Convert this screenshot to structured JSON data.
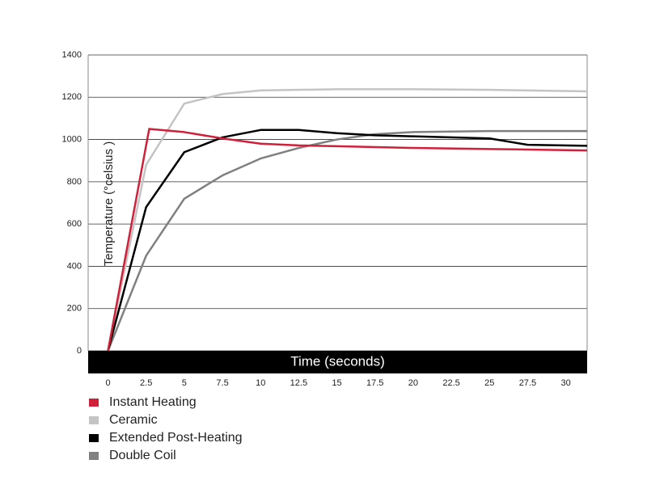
{
  "chart_data": {
    "type": "line",
    "x_label": "Time (seconds)",
    "y_label": "Temperature (°celsius )",
    "xlim": [
      -1.3,
      31.4
    ],
    "xticks": [
      0,
      2.5,
      5,
      7.5,
      10,
      12.5,
      15,
      17.5,
      20,
      22.5,
      25,
      27.5,
      30
    ],
    "ylim": [
      0,
      1400
    ],
    "yticks": [
      0,
      200,
      400,
      600,
      800,
      1000,
      1200,
      1400
    ],
    "grid": true,
    "legend": "bottom-left",
    "series": [
      {
        "name": "Instant Heating",
        "color": "#d0203a",
        "x": [
          0,
          2.7,
          5,
          7.5,
          10,
          12.5,
          15,
          20,
          25,
          31.4
        ],
        "values": [
          0,
          1050,
          1035,
          1005,
          980,
          972,
          968,
          960,
          955,
          948
        ]
      },
      {
        "name": "Ceramic",
        "color": "#c4c4c4",
        "x": [
          0,
          2.5,
          5,
          7.5,
          10,
          15,
          20,
          25,
          31.4
        ],
        "values": [
          0,
          880,
          1170,
          1215,
          1232,
          1238,
          1238,
          1235,
          1228
        ]
      },
      {
        "name": "Extended Post-Heating",
        "color": "#000000",
        "x": [
          0,
          2.5,
          5,
          7.5,
          10,
          12.5,
          15,
          17.5,
          20,
          25,
          27.5,
          31.4
        ],
        "values": [
          0,
          680,
          940,
          1010,
          1045,
          1045,
          1030,
          1020,
          1015,
          1005,
          975,
          970
        ]
      },
      {
        "name": "Double Coil",
        "color": "#808080",
        "x": [
          0,
          2.5,
          5,
          7.5,
          10,
          12.5,
          15,
          17.5,
          20,
          25,
          31.4
        ],
        "values": [
          0,
          450,
          720,
          830,
          910,
          960,
          1000,
          1025,
          1035,
          1040,
          1040
        ]
      }
    ]
  }
}
